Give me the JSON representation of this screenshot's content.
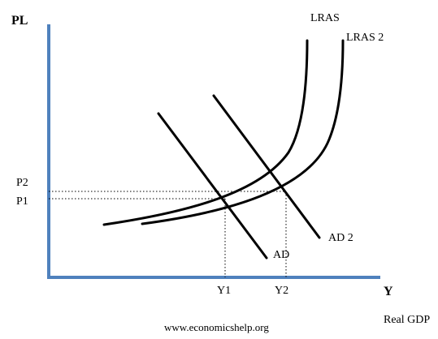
{
  "axes": {
    "y_label": "PL",
    "x_label": "Y",
    "x_caption": "Real GDP",
    "color": "#4f81bd"
  },
  "curves": {
    "lras": "LRAS",
    "lras2": "LRAS 2",
    "ad": "AD",
    "ad2": "AD 2"
  },
  "ticks": {
    "p1": "P1",
    "p2": "P2",
    "y1": "Y1",
    "y2": "Y2"
  },
  "footer": {
    "source": "www.economicshelp.org"
  }
}
